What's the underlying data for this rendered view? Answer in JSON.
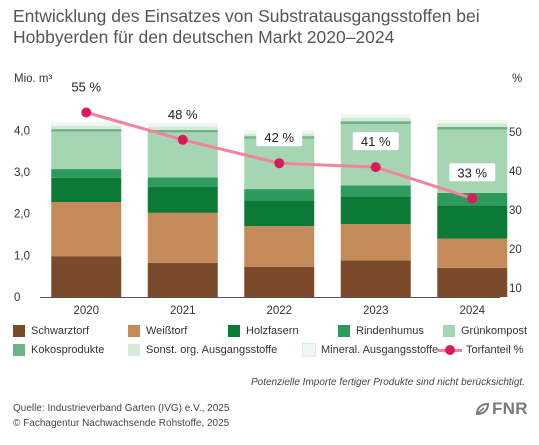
{
  "title": "Entwicklung des Einsatzes von Substratausgangsstoffen bei Hobbyerden für den deutschen Markt 2020–2024",
  "left_axis_unit": "Mio. m³",
  "right_axis_unit": "%",
  "footnote": "Potenzielle Importe fertiger Produkte sind nicht berücksichtigt.",
  "source_line1": "Quelle: Industrieverband Garten (IVG) e.V., 2025",
  "source_line2": "© Fachagentur Nachwachsende Rohstoffe, 2025",
  "logo_text": "FNR",
  "chart_data": {
    "type": "bar",
    "stacked": true,
    "categories": [
      "2020",
      "2021",
      "2022",
      "2023",
      "2024"
    ],
    "y_left": {
      "label": "Mio. m³",
      "lim": [
        0,
        4.2
      ],
      "ticks": [
        0,
        1.0,
        2.0,
        3.0,
        4.0
      ],
      "tick_labels": [
        "0",
        "1,0",
        "2,0",
        "3,0",
        "4,0"
      ]
    },
    "y_right": {
      "label": "%",
      "lim": [
        10,
        55
      ],
      "ticks": [
        10,
        20,
        30,
        40,
        50
      ],
      "tick_labels": [
        "10",
        "20",
        "30",
        "40",
        "50"
      ]
    },
    "series": [
      {
        "name": "Schwarztorf",
        "color": "#7b4a2a",
        "values": [
          0.98,
          0.82,
          0.72,
          0.88,
          0.7
        ]
      },
      {
        "name": "Weißtorf",
        "color": "#c48a5a",
        "values": [
          1.3,
          1.2,
          0.98,
          0.87,
          0.7
        ]
      },
      {
        "name": "Holzfasern",
        "color": "#0a7a36",
        "values": [
          0.58,
          0.62,
          0.62,
          0.65,
          0.8
        ]
      },
      {
        "name": "Rindenhumus",
        "color": "#2e9a5e",
        "values": [
          0.21,
          0.23,
          0.27,
          0.28,
          0.3
        ]
      },
      {
        "name": "Grünkompost",
        "color": "#a6d5b4",
        "values": [
          0.9,
          1.08,
          1.21,
          1.47,
          1.52
        ]
      },
      {
        "name": "Kokosprodukte",
        "color": "#6bb488",
        "values": [
          0.06,
          0.06,
          0.06,
          0.07,
          0.06
        ]
      },
      {
        "name": "Sonst. org. Ausgangsstoffe",
        "color": "#d3ead9",
        "values": [
          0.08,
          0.08,
          0.06,
          0.08,
          0.09
        ]
      },
      {
        "name": "Mineral. Ausgangsstoffe",
        "color": "#eef7f0",
        "values": [
          0.09,
          0.09,
          0.08,
          0.09,
          0.08
        ]
      }
    ],
    "line": {
      "name": "Torfanteil %",
      "color": "#f0849a",
      "marker_color": "#d61c5a",
      "values": [
        55,
        48,
        42,
        41,
        33
      ],
      "labels": [
        "55 %",
        "48 %",
        "42 %",
        "41 %",
        "33 %"
      ]
    },
    "legend_placement": "bottom"
  }
}
